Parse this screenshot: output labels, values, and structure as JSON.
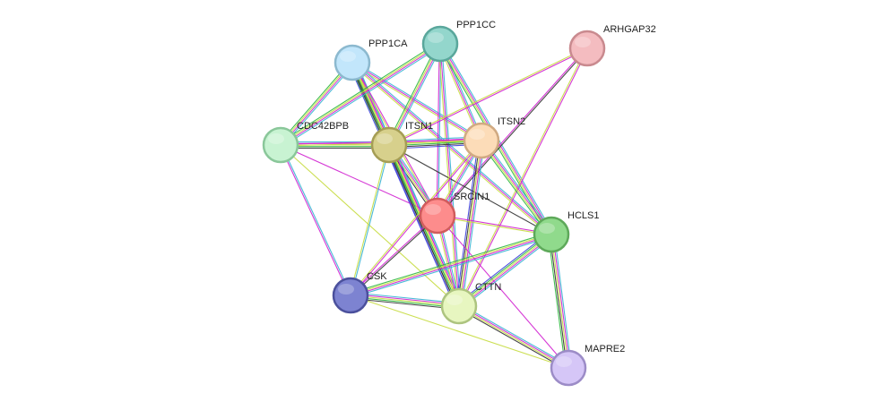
{
  "nodes": [
    {
      "label": "PPP1CA"
    },
    {
      "label": "PPP1CC"
    },
    {
      "label": "ARHGAP32"
    },
    {
      "label": "CDC42BPB"
    },
    {
      "label": "ITSN1"
    },
    {
      "label": "ITSN2"
    },
    {
      "label": "SRCIN1"
    },
    {
      "label": "HCLS1"
    },
    {
      "label": "CSK"
    },
    {
      "label": "CTTN"
    },
    {
      "label": "MAPRE2"
    }
  ]
}
